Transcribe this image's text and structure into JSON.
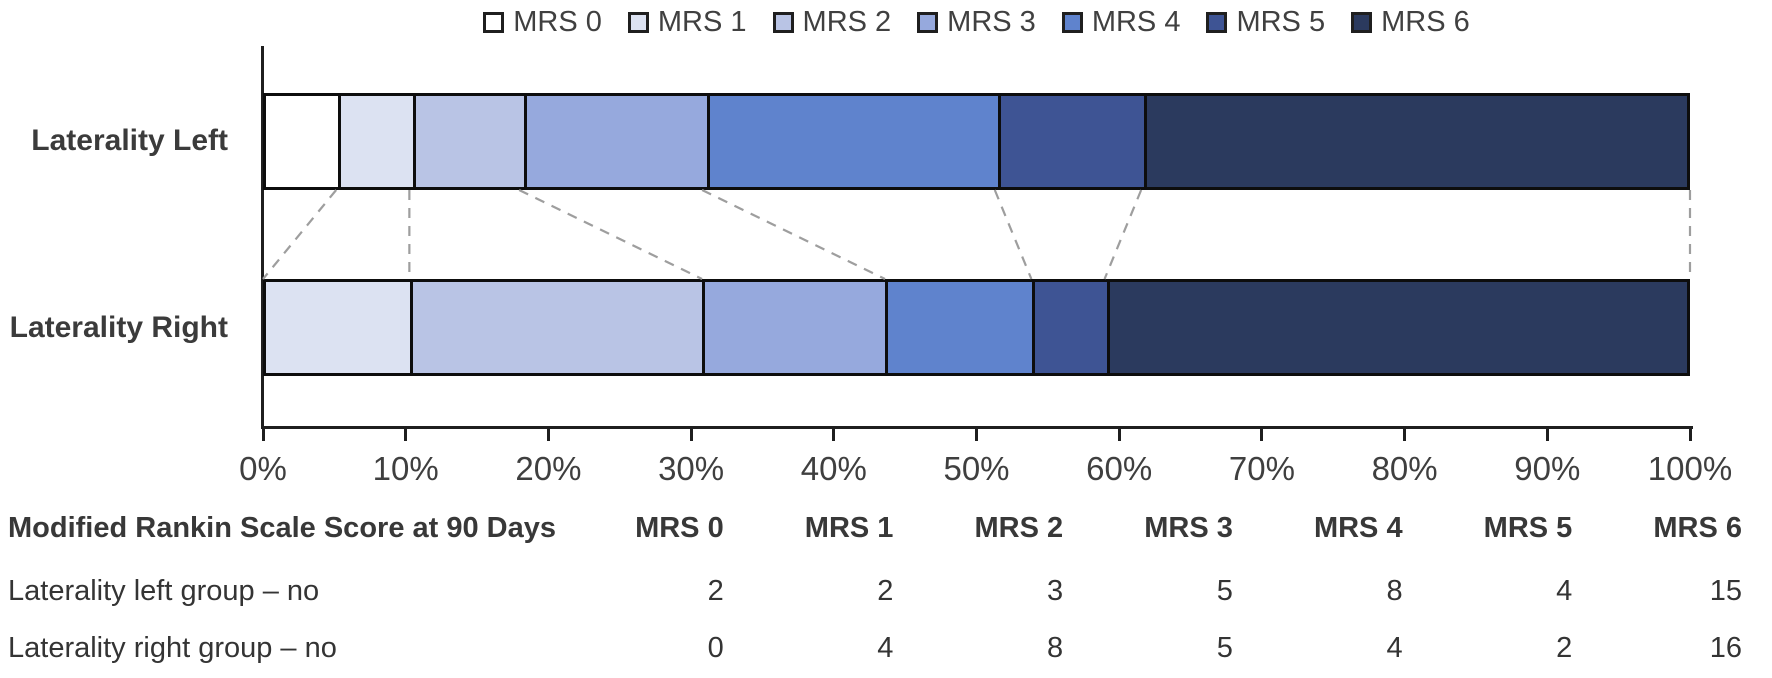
{
  "chart_data": {
    "type": "bar",
    "subtype": "horizontal-100pct-stacked",
    "title": "",
    "categories": [
      "MRS 0",
      "MRS 1",
      "MRS 2",
      "MRS 3",
      "MRS 4",
      "MRS 5",
      "MRS 6"
    ],
    "series": [
      {
        "name": "Laterality Left",
        "values": [
          2,
          2,
          3,
          5,
          8,
          4,
          15
        ]
      },
      {
        "name": "Laterality Right",
        "values": [
          0,
          4,
          8,
          5,
          4,
          2,
          16
        ]
      }
    ],
    "segment_colors": [
      "#ffffff",
      "#dce2f2",
      "#b9c4e5",
      "#96a9dd",
      "#5f83cd",
      "#3e5494",
      "#2b3a5e"
    ],
    "x_ticks": [
      "0%",
      "10%",
      "20%",
      "30%",
      "40%",
      "50%",
      "60%",
      "70%",
      "80%",
      "90%",
      "100%"
    ],
    "xlim": [
      0,
      100
    ],
    "legend_position": "top",
    "grid": false,
    "bar_border_color": "#0d0d0d",
    "connector_color": "#9e9e9e"
  },
  "table": {
    "header_label": "Modified Rankin Scale Score at 90 Days",
    "columns": [
      "MRS 0",
      "MRS 1",
      "MRS 2",
      "MRS 3",
      "MRS 4",
      "MRS 5",
      "MRS 6"
    ],
    "rows": [
      {
        "label": "Laterality left group – no",
        "values": [
          "2",
          "2",
          "3",
          "5",
          "8",
          "4",
          "15"
        ]
      },
      {
        "label": "Laterality right group – no",
        "values": [
          "0",
          "4",
          "8",
          "5",
          "4",
          "2",
          "16"
        ]
      }
    ]
  }
}
